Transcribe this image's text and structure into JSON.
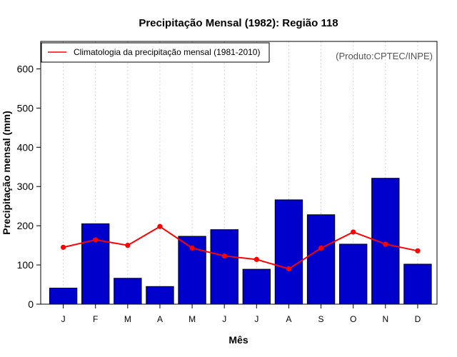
{
  "chart_data": {
    "type": "bar",
    "title": "Precipitação Mensal (1982): Região 118",
    "xlabel": "Mês",
    "ylabel": "Precipitação mensal (mm)",
    "credit": "(Produto:CPTEC/INPE)",
    "categories": [
      "J",
      "F",
      "M",
      "A",
      "M",
      "J",
      "J",
      "A",
      "S",
      "O",
      "N",
      "D"
    ],
    "series": [
      {
        "name": "Precipitação mensal (1982)",
        "type": "bar",
        "color": "#0000cd",
        "values": [
          41,
          205,
          66,
          45,
          173,
          190,
          89,
          266,
          228,
          153,
          321,
          102
        ]
      },
      {
        "name": "Climatologia da precipitação mensal (1981-2010)",
        "type": "line",
        "color": "#ff0000",
        "values": [
          145,
          164,
          150,
          198,
          143,
          123,
          114,
          90,
          143,
          184,
          153,
          136
        ]
      }
    ],
    "legend": [
      "Climatologia da precipitação mensal (1981-2010)"
    ],
    "legend_position": "top-left",
    "ylim": [
      0,
      670
    ],
    "yticks": [
      0,
      100,
      200,
      300,
      400,
      500,
      600
    ],
    "grid": "vertical dotted"
  }
}
